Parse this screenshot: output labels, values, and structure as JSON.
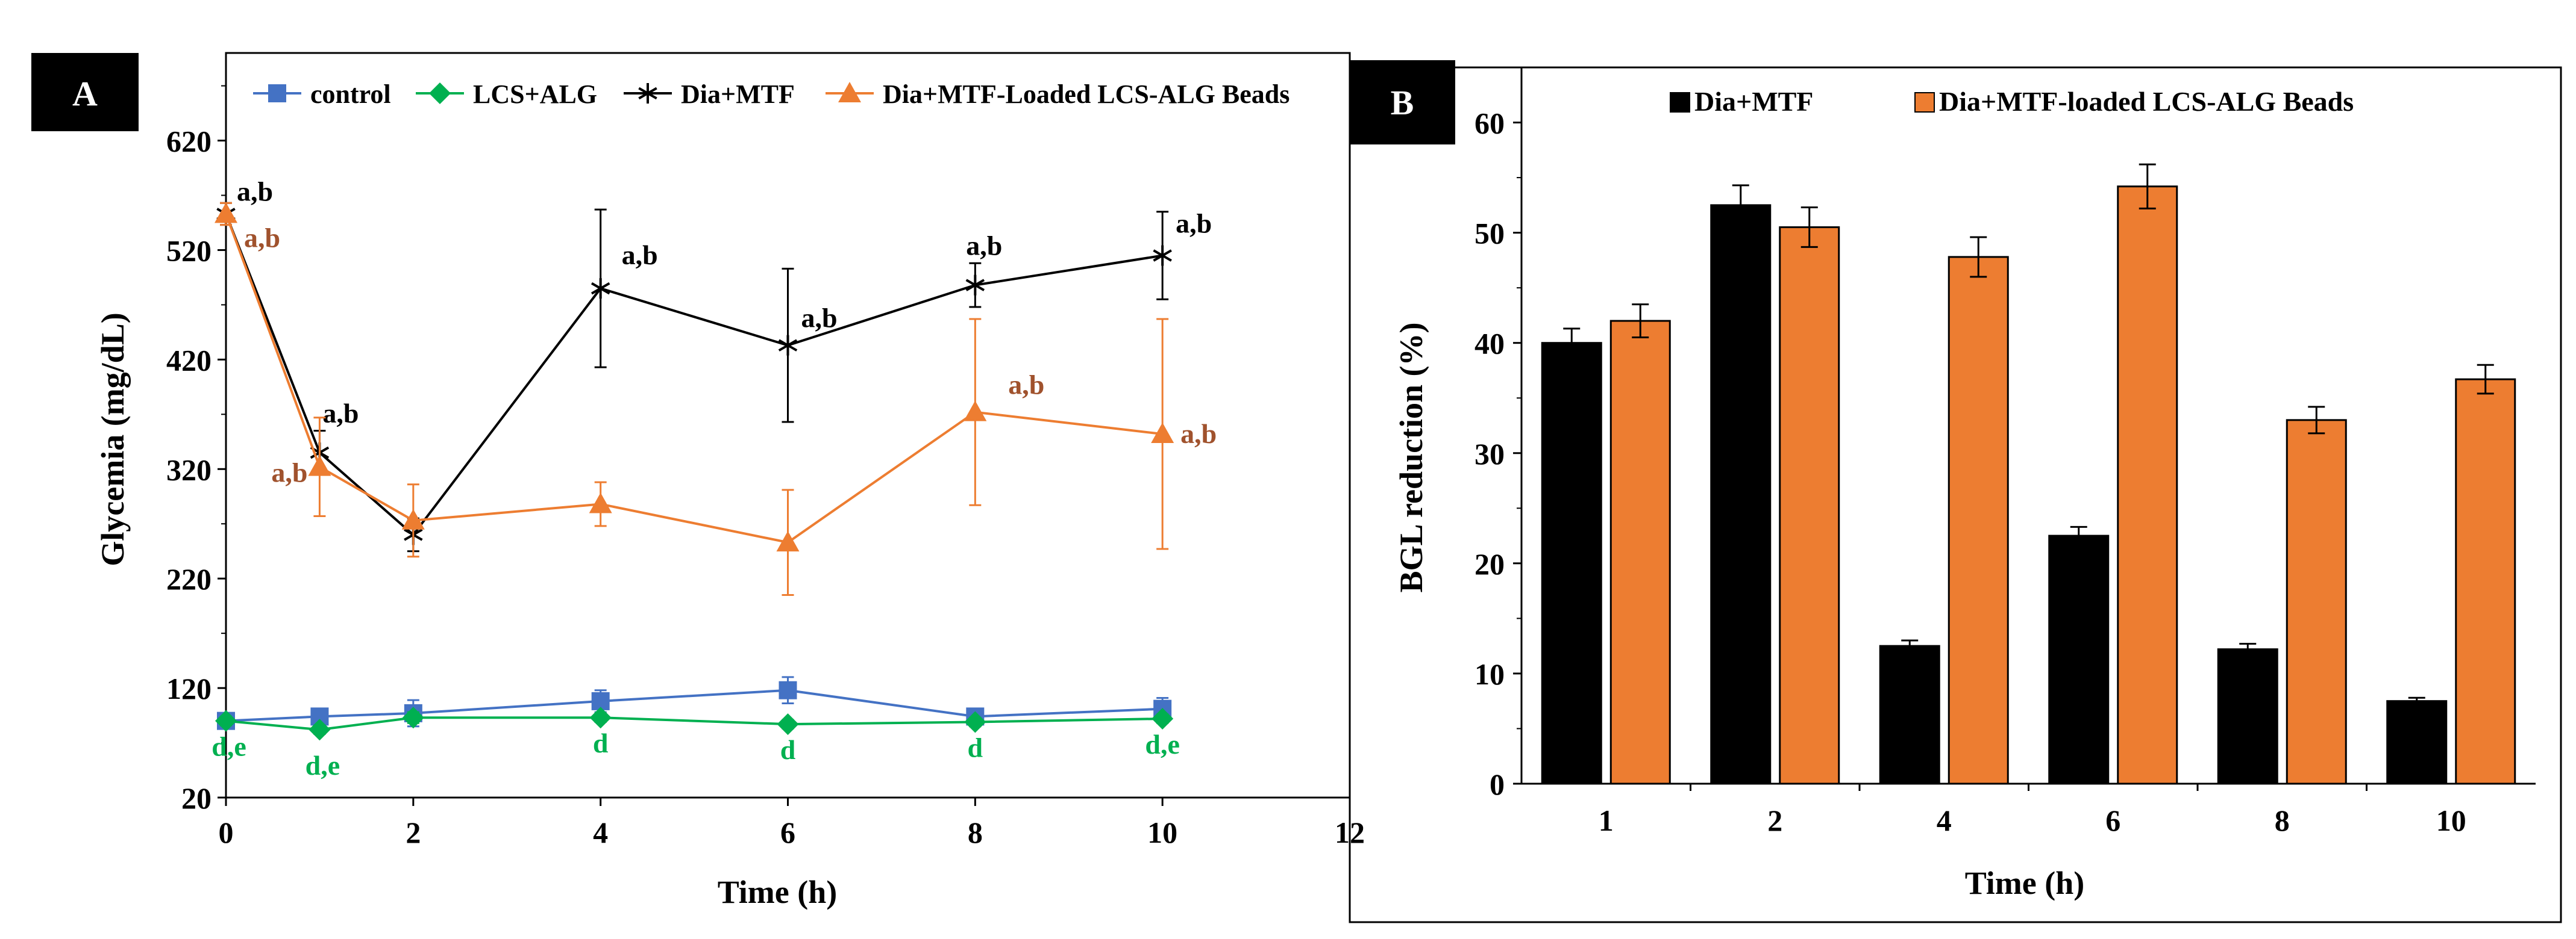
{
  "chart_data": [
    {
      "panel_label": "A",
      "type": "line",
      "xlabel": "Time  (h)",
      "ylabel": "Glycemia  (mg/dL)",
      "xlim": [
        0,
        12
      ],
      "ylim": [
        20,
        700
      ],
      "xticks": [
        0,
        2,
        4,
        6,
        8,
        10,
        12
      ],
      "yticks": [
        20,
        120,
        220,
        320,
        420,
        520,
        620
      ],
      "legend_position": "top",
      "series": [
        {
          "name": "control",
          "color": "#4472C4",
          "marker": "square",
          "x": [
            0,
            1,
            2,
            4,
            6,
            8,
            10
          ],
          "y": [
            90,
            94,
            97,
            108,
            118,
            94,
            101
          ],
          "err": [
            5,
            7,
            12,
            10,
            12,
            7,
            10
          ]
        },
        {
          "name": "LCS+ALG",
          "color": "#00B050",
          "marker": "diamond",
          "x": [
            0,
            1,
            2,
            4,
            6,
            8,
            10
          ],
          "y": [
            90,
            82,
            93,
            93,
            87,
            89,
            92
          ],
          "err": [
            4,
            4,
            5,
            4,
            4,
            4,
            4
          ],
          "annotations": [
            "d,e",
            "d,e",
            "",
            "d",
            "d",
            "d",
            "d,e"
          ],
          "annotation_color": "#00B050"
        },
        {
          "name": "Dia+MTF",
          "color": "#000000",
          "marker": "star",
          "x": [
            0,
            1,
            2,
            4,
            6,
            8,
            10
          ],
          "y": [
            553,
            335,
            260,
            485,
            433,
            488,
            515
          ],
          "err": [
            10,
            20,
            15,
            72,
            70,
            20,
            40
          ],
          "annotations": [
            "a,b",
            "a,b",
            "",
            "a,b",
            "a,b",
            "a,b",
            "a,b"
          ],
          "annotation_color": "#000000"
        },
        {
          "name": "Dia+MTF-Loaded LCS-ALG Beads",
          "color": "#ED7D31",
          "marker": "triangle",
          "x": [
            0,
            1,
            2,
            4,
            6,
            8,
            10
          ],
          "y": [
            553,
            322,
            273,
            288,
            253,
            372,
            352
          ],
          "err": [
            10,
            45,
            33,
            20,
            48,
            85,
            105
          ],
          "annotations": [
            "a,b",
            "a,b",
            "",
            "",
            "",
            "a,b",
            "a,b"
          ],
          "annotation_color": "#A0522D"
        }
      ]
    },
    {
      "panel_label": "B",
      "type": "bar",
      "xlabel": "Time (h)",
      "ylabel": "BGL reduction (%)",
      "ylim": [
        0,
        65
      ],
      "yticks": [
        0,
        10,
        20,
        30,
        40,
        50,
        60
      ],
      "categories": [
        "1",
        "2",
        "4",
        "6",
        "8",
        "10"
      ],
      "legend_position": "top",
      "series": [
        {
          "name": "Dia+MTF",
          "color": "#000000",
          "values": [
            40,
            52.5,
            12.5,
            22.5,
            12.2,
            7.5
          ],
          "err": [
            1.3,
            1.8,
            0.5,
            0.8,
            0.5,
            0.3
          ]
        },
        {
          "name": "Dia+MTF-loaded LCS-ALG Beads",
          "color": "#ED7D31",
          "values": [
            42,
            50.5,
            47.8,
            54.2,
            33,
            36.7
          ],
          "err": [
            1.5,
            1.8,
            1.8,
            2.0,
            1.2,
            1.3
          ]
        }
      ]
    }
  ]
}
